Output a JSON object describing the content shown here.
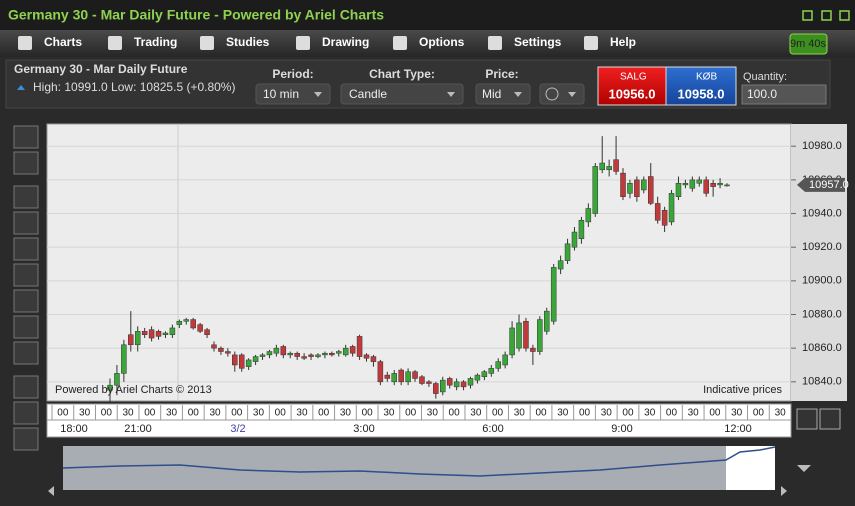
{
  "window": {
    "title": "Germany 30 - Mar Daily Future - Powered by Ariel Charts"
  },
  "menu": [
    "Charts",
    "Trading",
    "Studies",
    "Drawing",
    "Options",
    "Settings",
    "Help"
  ],
  "timer": "9m 40s",
  "info": {
    "instrument": "Germany 30 - Mar Daily Future",
    "stats": "High: 10991.0 Low: 10825.5 (+0.80%)",
    "period_label": "Period:",
    "period": "10 min",
    "chart_type_label": "Chart Type:",
    "chart_type": "Candle",
    "price_label": "Price:",
    "price": "Mid",
    "sell_label": "SALG",
    "sell_price": "10956.0",
    "buy_label": "KØB",
    "buy_price": "10958.0",
    "quantity_label": "Quantity:",
    "quantity": "100.0"
  },
  "chart_data": {
    "type": "candlestick",
    "ylim": [
      10828.6,
      10993.2
    ],
    "yticks": [
      {
        "value": 10840,
        "label": "10840.0"
      },
      {
        "value": 10860,
        "label": "10860.0"
      },
      {
        "value": 10880,
        "label": "10880.0"
      },
      {
        "value": 10900,
        "label": "10900.0"
      },
      {
        "value": 10920,
        "label": "10920.0"
      },
      {
        "value": 10940,
        "label": "10940.0"
      },
      {
        "value": 10960,
        "label": "10960.0"
      },
      {
        "value": 10980,
        "label": "10980.0"
      }
    ],
    "last_price": {
      "value": 10957,
      "label": "10957.0"
    },
    "up_color": "#3aa63a",
    "down_color": "#c0393b",
    "credit": "Powered by Ariel Charts © 2013",
    "note": "Indicative prices",
    "time_slots": [
      "00",
      "30",
      "00",
      "30",
      "00",
      "30",
      "00",
      "30",
      "00",
      "30",
      "00",
      "30",
      "00",
      "30",
      "00",
      "30",
      "00",
      "30",
      "00",
      "30",
      "00",
      "30",
      "00",
      "30",
      "00",
      "30",
      "00",
      "30",
      "00",
      "30",
      "00",
      "30",
      "00",
      "30"
    ],
    "time_labels": [
      "18:00",
      "21:00",
      "3/2",
      "3:00",
      "6:00",
      "9:00",
      "12:00"
    ],
    "candles": [
      {
        "o": 10835,
        "h": 10842,
        "l": 10828,
        "c": 10838
      },
      {
        "o": 10838,
        "h": 10850,
        "l": 10832,
        "c": 10845
      },
      {
        "o": 10845,
        "h": 10865,
        "l": 10840,
        "c": 10862
      },
      {
        "o": 10868,
        "h": 10882,
        "l": 10858,
        "c": 10862
      },
      {
        "o": 10862,
        "h": 10873,
        "l": 10858,
        "c": 10870
      },
      {
        "o": 10870,
        "h": 10872,
        "l": 10866,
        "c": 10868
      },
      {
        "o": 10871,
        "h": 10873,
        "l": 10864,
        "c": 10866
      },
      {
        "o": 10870,
        "h": 10871,
        "l": 10865,
        "c": 10867
      },
      {
        "o": 10868,
        "h": 10870,
        "l": 10866,
        "c": 10869
      },
      {
        "o": 10868,
        "h": 10874,
        "l": 10866,
        "c": 10872
      },
      {
        "o": 10874,
        "h": 10877,
        "l": 10872,
        "c": 10876
      },
      {
        "o": 10876,
        "h": 10878,
        "l": 10874,
        "c": 10877
      },
      {
        "o": 10877,
        "h": 10878,
        "l": 10871,
        "c": 10872
      },
      {
        "o": 10874,
        "h": 10875,
        "l": 10869,
        "c": 10870
      },
      {
        "o": 10871,
        "h": 10872,
        "l": 10866,
        "c": 10868
      },
      {
        "o": 10862,
        "h": 10864,
        "l": 10858,
        "c": 10860
      },
      {
        "o": 10860,
        "h": 10861,
        "l": 10856,
        "c": 10858
      },
      {
        "o": 10858,
        "h": 10860,
        "l": 10855,
        "c": 10857
      },
      {
        "o": 10856,
        "h": 10858,
        "l": 10846,
        "c": 10850
      },
      {
        "o": 10856,
        "h": 10857,
        "l": 10846,
        "c": 10848
      },
      {
        "o": 10849,
        "h": 10854,
        "l": 10847,
        "c": 10853
      },
      {
        "o": 10852,
        "h": 10856,
        "l": 10850,
        "c": 10855
      },
      {
        "o": 10855,
        "h": 10857,
        "l": 10853,
        "c": 10856
      },
      {
        "o": 10856,
        "h": 10859,
        "l": 10854,
        "c": 10858
      },
      {
        "o": 10857,
        "h": 10862,
        "l": 10855,
        "c": 10860
      },
      {
        "o": 10861,
        "h": 10862,
        "l": 10854,
        "c": 10856
      },
      {
        "o": 10856,
        "h": 10858,
        "l": 10854,
        "c": 10857
      },
      {
        "o": 10857,
        "h": 10858,
        "l": 10853,
        "c": 10855
      },
      {
        "o": 10855,
        "h": 10857,
        "l": 10853,
        "c": 10854
      },
      {
        "o": 10856,
        "h": 10857,
        "l": 10853,
        "c": 10855
      },
      {
        "o": 10855,
        "h": 10857,
        "l": 10854,
        "c": 10856
      },
      {
        "o": 10856,
        "h": 10858,
        "l": 10854,
        "c": 10857
      },
      {
        "o": 10857,
        "h": 10858,
        "l": 10855,
        "c": 10856
      },
      {
        "o": 10857,
        "h": 10859,
        "l": 10855,
        "c": 10858
      },
      {
        "o": 10856,
        "h": 10862,
        "l": 10855,
        "c": 10860
      },
      {
        "o": 10861,
        "h": 10862,
        "l": 10855,
        "c": 10857
      },
      {
        "o": 10867,
        "h": 10868,
        "l": 10853,
        "c": 10855
      },
      {
        "o": 10856,
        "h": 10857,
        "l": 10852,
        "c": 10854
      },
      {
        "o": 10855,
        "h": 10856,
        "l": 10849,
        "c": 10852
      },
      {
        "o": 10852,
        "h": 10853,
        "l": 10838,
        "c": 10840
      },
      {
        "o": 10844,
        "h": 10846,
        "l": 10840,
        "c": 10842
      },
      {
        "o": 10840,
        "h": 10847,
        "l": 10838,
        "c": 10845
      },
      {
        "o": 10847,
        "h": 10848,
        "l": 10838,
        "c": 10840
      },
      {
        "o": 10840,
        "h": 10848,
        "l": 10838,
        "c": 10846
      },
      {
        "o": 10846,
        "h": 10847,
        "l": 10840,
        "c": 10842
      },
      {
        "o": 10843,
        "h": 10844,
        "l": 10838,
        "c": 10839
      },
      {
        "o": 10840,
        "h": 10841,
        "l": 10837,
        "c": 10839
      },
      {
        "o": 10839,
        "h": 10840,
        "l": 10830,
        "c": 10833
      },
      {
        "o": 10834,
        "h": 10843,
        "l": 10832,
        "c": 10841
      },
      {
        "o": 10842,
        "h": 10843,
        "l": 10836,
        "c": 10838
      },
      {
        "o": 10837,
        "h": 10842,
        "l": 10835,
        "c": 10840
      },
      {
        "o": 10840,
        "h": 10841,
        "l": 10835,
        "c": 10837
      },
      {
        "o": 10838,
        "h": 10843,
        "l": 10836,
        "c": 10842
      },
      {
        "o": 10841,
        "h": 10845,
        "l": 10839,
        "c": 10844
      },
      {
        "o": 10843,
        "h": 10847,
        "l": 10841,
        "c": 10846
      },
      {
        "o": 10845,
        "h": 10850,
        "l": 10843,
        "c": 10848
      },
      {
        "o": 10848,
        "h": 10854,
        "l": 10846,
        "c": 10852
      },
      {
        "o": 10850,
        "h": 10858,
        "l": 10848,
        "c": 10856
      },
      {
        "o": 10856,
        "h": 10876,
        "l": 10854,
        "c": 10872
      },
      {
        "o": 10860,
        "h": 10880,
        "l": 10858,
        "c": 10875
      },
      {
        "o": 10876,
        "h": 10878,
        "l": 10858,
        "c": 10860
      },
      {
        "o": 10860,
        "h": 10862,
        "l": 10850,
        "c": 10858
      },
      {
        "o": 10858,
        "h": 10879,
        "l": 10856,
        "c": 10877
      },
      {
        "o": 10870,
        "h": 10884,
        "l": 10868,
        "c": 10882
      },
      {
        "o": 10876,
        "h": 10910,
        "l": 10874,
        "c": 10908
      },
      {
        "o": 10907,
        "h": 10915,
        "l": 10904,
        "c": 10912
      },
      {
        "o": 10912,
        "h": 10925,
        "l": 10910,
        "c": 10922
      },
      {
        "o": 10920,
        "h": 10932,
        "l": 10918,
        "c": 10929
      },
      {
        "o": 10925,
        "h": 10938,
        "l": 10922,
        "c": 10936
      },
      {
        "o": 10935,
        "h": 10946,
        "l": 10932,
        "c": 10943
      },
      {
        "o": 10940,
        "h": 10970,
        "l": 10938,
        "c": 10968
      },
      {
        "o": 10966,
        "h": 10986,
        "l": 10964,
        "c": 10970
      },
      {
        "o": 10966,
        "h": 10972,
        "l": 10962,
        "c": 10968
      },
      {
        "o": 10972,
        "h": 10986,
        "l": 10963,
        "c": 10965
      },
      {
        "o": 10964,
        "h": 10967,
        "l": 10948,
        "c": 10950
      },
      {
        "o": 10952,
        "h": 10960,
        "l": 10949,
        "c": 10958
      },
      {
        "o": 10960,
        "h": 10962,
        "l": 10947,
        "c": 10950
      },
      {
        "o": 10954,
        "h": 10962,
        "l": 10952,
        "c": 10960
      },
      {
        "o": 10962,
        "h": 10970,
        "l": 10945,
        "c": 10946
      },
      {
        "o": 10946,
        "h": 10950,
        "l": 10934,
        "c": 10936
      },
      {
        "o": 10942,
        "h": 10944,
        "l": 10929,
        "c": 10933
      },
      {
        "o": 10935,
        "h": 10954,
        "l": 10933,
        "c": 10952
      },
      {
        "o": 10950,
        "h": 10962,
        "l": 10948,
        "c": 10958
      },
      {
        "o": 10957,
        "h": 10960,
        "l": 10955,
        "c": 10958
      },
      {
        "o": 10955,
        "h": 10962,
        "l": 10953,
        "c": 10960
      },
      {
        "o": 10958,
        "h": 10962,
        "l": 10956,
        "c": 10960
      },
      {
        "o": 10960,
        "h": 10962,
        "l": 10950,
        "c": 10952
      },
      {
        "o": 10958,
        "h": 10960,
        "l": 10950,
        "c": 10956
      },
      {
        "o": 10957,
        "h": 10961,
        "l": 10955,
        "c": 10958
      },
      {
        "o": 10957,
        "h": 10958,
        "l": 10956,
        "c": 10957
      }
    ]
  }
}
